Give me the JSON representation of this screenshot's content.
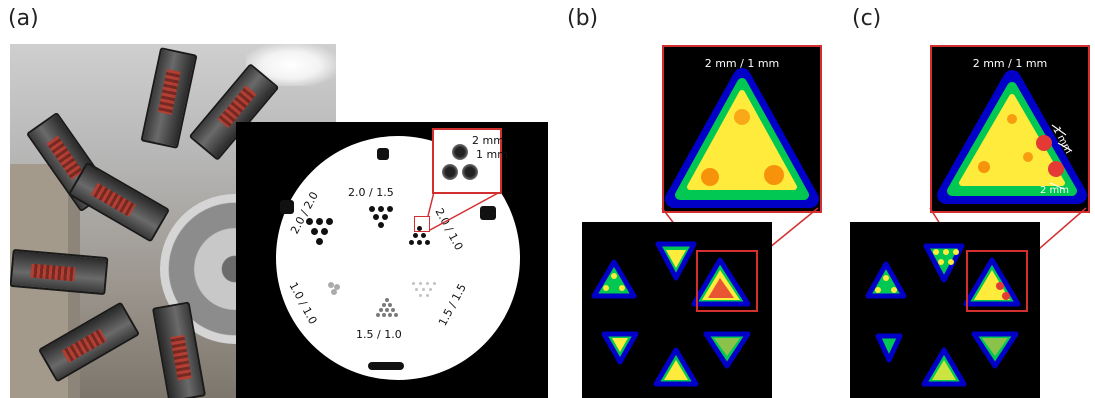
{
  "panels": {
    "a_label": "(a)",
    "b_label": "(b)",
    "c_label": "(c)"
  },
  "phantom": {
    "labels": {
      "top": "2.0 / 1.5",
      "left": "2.0 / 2.0",
      "right": "2.0 / 1.0",
      "lower_left": "1.0 / 1.0",
      "bottom": "1.5 / 1.0",
      "lower_right": "1.5 / 1.5"
    },
    "zoom_labels": {
      "size": "2 mm",
      "gap": "1 mm"
    }
  },
  "heatmaps": {
    "b_zoom_title": "2 mm / 1 mm",
    "c_zoom_title": "2 mm / 1 mm",
    "c_annot_1": "1 mm",
    "c_annot_2": "2 mm"
  },
  "colors": {
    "highlight": "#d32f2f",
    "heat_low": "#0000c8",
    "heat_mid": "#00c853",
    "heat_high": "#ffeb3b",
    "heat_peak": "#e53935"
  }
}
